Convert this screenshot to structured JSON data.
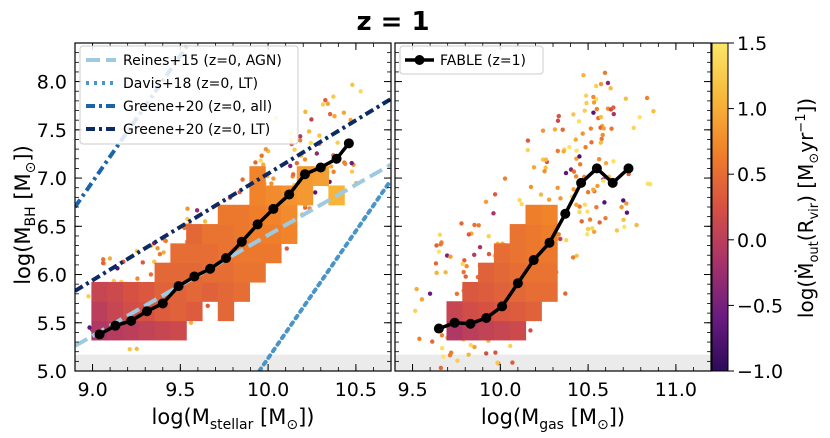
{
  "figure_title": "z = 1",
  "colorbar": {
    "label_parts": [
      "log(",
      "Ṁ",
      "out",
      "(R",
      "vir",
      ") [M",
      "⊙",
      "yr",
      "−1",
      "])"
    ],
    "ticks": [
      1.5,
      1.0,
      0.5,
      0.0,
      -0.5,
      -1.0
    ],
    "tick_labels": [
      "1.5",
      "1.0",
      "0.5",
      "0.0",
      "−0.5",
      "−1.0"
    ],
    "range": [
      -1.0,
      1.5
    ],
    "colormap": "plasma-like (purple → orange → yellow)"
  },
  "colormap_stops": [
    "#2c0a59",
    "#6a1c80",
    "#a8336a",
    "#d75143",
    "#f0802a",
    "#f8b83a",
    "#fbe668"
  ],
  "chart_data": [
    {
      "type": "scatter",
      "panel": "left",
      "xlabel_parts": [
        "log(M",
        "stellar",
        " [M",
        "⊙",
        "])"
      ],
      "ylabel_parts": [
        "log(M",
        "BH",
        " [M",
        "⊙",
        "])"
      ],
      "xlim": [
        8.9,
        10.7
      ],
      "ylim": [
        5.0,
        8.4
      ],
      "x_ticks": [
        9.0,
        9.5,
        10.0,
        10.5
      ],
      "x_tick_labels": [
        "9.0",
        "9.5",
        "10.0",
        "10.5"
      ],
      "y_ticks": [
        5.0,
        5.5,
        6.0,
        6.5,
        7.0,
        7.5,
        8.0
      ],
      "y_tick_labels": [
        "5.0",
        "5.5",
        "6.0",
        "6.5",
        "7.0",
        "7.5",
        "8.0"
      ],
      "shaded_band_below": 5.17,
      "legend_location": "upper-left",
      "relations": [
        {
          "name": "Reines+15 (z=0, AGN)",
          "style": "dashed",
          "color": "#9ecae1",
          "points": [
            [
              8.9,
              5.26
            ],
            [
              10.7,
              7.14
            ]
          ]
        },
        {
          "name": "Davis+18 (z=0, LT)",
          "style": "dotted",
          "color": "#4a95c8",
          "points": [
            [
              9.95,
              5.0
            ],
            [
              10.7,
              6.98
            ]
          ]
        },
        {
          "name": "Greene+20 (z=0, all)",
          "style": "dashdot",
          "color": "#1c64aa",
          "points": [
            [
              8.9,
              6.7
            ],
            [
              9.55,
              8.4
            ]
          ]
        },
        {
          "name": "Greene+20 (z=0, LT)",
          "style": "dashdot",
          "color": "#0e2a63",
          "points": [
            [
              8.9,
              5.83
            ],
            [
              10.7,
              7.82
            ]
          ]
        }
      ],
      "median_line": {
        "name": "FABLE (z=1)",
        "x": [
          9.04,
          9.13,
          9.22,
          9.31,
          9.4,
          9.49,
          9.58,
          9.67,
          9.76,
          9.85,
          9.94,
          10.03,
          10.12,
          10.21,
          10.3,
          10.39,
          10.46
        ],
        "y": [
          5.38,
          5.47,
          5.52,
          5.62,
          5.7,
          5.88,
          5.98,
          6.06,
          6.17,
          6.34,
          6.52,
          6.68,
          6.83,
          7.04,
          7.11,
          7.2,
          7.36
        ]
      },
      "bins": [
        {
          "x": 9.04,
          "y": 5.42,
          "c": -0.1
        },
        {
          "x": 9.04,
          "y": 5.62,
          "c": 0.0
        },
        {
          "x": 9.04,
          "y": 5.82,
          "c": 0.1
        },
        {
          "x": 9.13,
          "y": 5.42,
          "c": -0.05
        },
        {
          "x": 9.13,
          "y": 5.62,
          "c": 0.1
        },
        {
          "x": 9.13,
          "y": 5.82,
          "c": 0.15
        },
        {
          "x": 9.22,
          "y": 5.42,
          "c": 0.0
        },
        {
          "x": 9.22,
          "y": 5.62,
          "c": 0.2
        },
        {
          "x": 9.22,
          "y": 5.82,
          "c": 0.25
        },
        {
          "x": 9.31,
          "y": 5.42,
          "c": 0.05
        },
        {
          "x": 9.31,
          "y": 5.62,
          "c": 0.25
        },
        {
          "x": 9.31,
          "y": 5.82,
          "c": 0.3
        },
        {
          "x": 9.4,
          "y": 5.42,
          "c": 0.1
        },
        {
          "x": 9.4,
          "y": 5.62,
          "c": 0.35
        },
        {
          "x": 9.4,
          "y": 5.82,
          "c": 0.4
        },
        {
          "x": 9.4,
          "y": 6.02,
          "c": 0.45
        },
        {
          "x": 9.49,
          "y": 5.42,
          "c": 0.15
        },
        {
          "x": 9.49,
          "y": 5.62,
          "c": 0.4
        },
        {
          "x": 9.49,
          "y": 5.82,
          "c": 0.4
        },
        {
          "x": 9.49,
          "y": 6.02,
          "c": 0.45
        },
        {
          "x": 9.49,
          "y": 6.22,
          "c": 0.5
        },
        {
          "x": 9.58,
          "y": 5.62,
          "c": 0.35
        },
        {
          "x": 9.58,
          "y": 5.82,
          "c": 0.45
        },
        {
          "x": 9.58,
          "y": 6.02,
          "c": 0.45
        },
        {
          "x": 9.58,
          "y": 6.22,
          "c": 0.5
        },
        {
          "x": 9.58,
          "y": 6.42,
          "c": 0.45
        },
        {
          "x": 9.67,
          "y": 5.82,
          "c": 0.4
        },
        {
          "x": 9.67,
          "y": 6.02,
          "c": 0.5
        },
        {
          "x": 9.67,
          "y": 6.22,
          "c": 0.5
        },
        {
          "x": 9.67,
          "y": 6.42,
          "c": 0.55
        },
        {
          "x": 9.76,
          "y": 5.62,
          "c": 0.45
        },
        {
          "x": 9.76,
          "y": 5.82,
          "c": 0.45
        },
        {
          "x": 9.76,
          "y": 6.02,
          "c": 0.5
        },
        {
          "x": 9.76,
          "y": 6.22,
          "c": 0.55
        },
        {
          "x": 9.76,
          "y": 6.42,
          "c": 0.55
        },
        {
          "x": 9.76,
          "y": 6.62,
          "c": 0.6
        },
        {
          "x": 9.85,
          "y": 5.82,
          "c": 0.5
        },
        {
          "x": 9.85,
          "y": 6.02,
          "c": 0.55
        },
        {
          "x": 9.85,
          "y": 6.22,
          "c": 0.6
        },
        {
          "x": 9.85,
          "y": 6.42,
          "c": 0.6
        },
        {
          "x": 9.85,
          "y": 6.62,
          "c": 0.6
        },
        {
          "x": 9.94,
          "y": 6.02,
          "c": 0.55
        },
        {
          "x": 9.94,
          "y": 6.22,
          "c": 0.6
        },
        {
          "x": 9.94,
          "y": 6.42,
          "c": 0.65
        },
        {
          "x": 9.94,
          "y": 6.62,
          "c": 0.65
        },
        {
          "x": 9.94,
          "y": 6.82,
          "c": 0.7
        },
        {
          "x": 9.94,
          "y": 7.02,
          "c": 0.7
        },
        {
          "x": 10.03,
          "y": 6.22,
          "c": 0.6
        },
        {
          "x": 10.03,
          "y": 6.42,
          "c": 0.65
        },
        {
          "x": 10.03,
          "y": 6.62,
          "c": 0.7
        },
        {
          "x": 10.03,
          "y": 6.82,
          "c": 0.75
        },
        {
          "x": 10.12,
          "y": 6.42,
          "c": 0.7
        },
        {
          "x": 10.12,
          "y": 6.62,
          "c": 0.75
        },
        {
          "x": 10.12,
          "y": 6.82,
          "c": 0.8
        },
        {
          "x": 10.21,
          "y": 6.82,
          "c": 0.85
        },
        {
          "x": 10.21,
          "y": 7.02,
          "c": 0.85
        },
        {
          "x": 10.3,
          "y": 7.02,
          "c": 0.9
        },
        {
          "x": 10.39,
          "y": 6.82,
          "c": 1.05
        }
      ],
      "galaxy_points_summary": "~200 individual galaxies outside the binned region, colour-coded by outflow rate (mostly 0.3–1.5)"
    },
    {
      "type": "scatter",
      "panel": "right",
      "xlabel_parts": [
        "log(M",
        "gas",
        " [M",
        "⊙",
        "])"
      ],
      "xlim": [
        9.4,
        11.2
      ],
      "ylim": [
        5.0,
        8.4
      ],
      "x_ticks": [
        9.5,
        10.0,
        10.5,
        11.0
      ],
      "x_tick_labels": [
        "9.5",
        "10.0",
        "10.5",
        "11.0"
      ],
      "shaded_band_below": 5.17,
      "legend_location": "upper-left",
      "median_line": {
        "name": "FABLE (z=1)",
        "x": [
          9.65,
          9.74,
          9.83,
          9.92,
          10.01,
          10.1,
          10.19,
          10.28,
          10.37,
          10.46,
          10.55,
          10.64,
          10.73
        ],
        "y": [
          5.44,
          5.5,
          5.49,
          5.55,
          5.67,
          5.91,
          6.15,
          6.33,
          6.63,
          6.95,
          7.1,
          6.95,
          7.1
        ]
      },
      "bins": [
        {
          "x": 9.74,
          "y": 5.42,
          "c": -0.1
        },
        {
          "x": 9.74,
          "y": 5.62,
          "c": 0.1
        },
        {
          "x": 9.83,
          "y": 5.42,
          "c": 0.0
        },
        {
          "x": 9.83,
          "y": 5.62,
          "c": 0.2
        },
        {
          "x": 9.83,
          "y": 5.82,
          "c": 0.3
        },
        {
          "x": 9.92,
          "y": 5.42,
          "c": 0.05
        },
        {
          "x": 9.92,
          "y": 5.62,
          "c": 0.25
        },
        {
          "x": 9.92,
          "y": 5.82,
          "c": 0.35
        },
        {
          "x": 9.92,
          "y": 6.02,
          "c": 0.4
        },
        {
          "x": 10.01,
          "y": 5.42,
          "c": 0.1
        },
        {
          "x": 10.01,
          "y": 5.62,
          "c": 0.3
        },
        {
          "x": 10.01,
          "y": 5.82,
          "c": 0.4
        },
        {
          "x": 10.01,
          "y": 6.02,
          "c": 0.45
        },
        {
          "x": 10.01,
          "y": 6.22,
          "c": 0.5
        },
        {
          "x": 10.1,
          "y": 5.42,
          "c": 0.15
        },
        {
          "x": 10.1,
          "y": 5.62,
          "c": 0.35
        },
        {
          "x": 10.1,
          "y": 5.82,
          "c": 0.45
        },
        {
          "x": 10.1,
          "y": 6.02,
          "c": 0.5
        },
        {
          "x": 10.1,
          "y": 6.22,
          "c": 0.55
        },
        {
          "x": 10.1,
          "y": 6.42,
          "c": 0.55
        },
        {
          "x": 10.19,
          "y": 5.62,
          "c": 0.4
        },
        {
          "x": 10.19,
          "y": 5.82,
          "c": 0.5
        },
        {
          "x": 10.19,
          "y": 6.02,
          "c": 0.55
        },
        {
          "x": 10.19,
          "y": 6.22,
          "c": 0.6
        },
        {
          "x": 10.19,
          "y": 6.42,
          "c": 0.6
        },
        {
          "x": 10.19,
          "y": 6.62,
          "c": 0.65
        },
        {
          "x": 10.28,
          "y": 5.82,
          "c": 0.5
        },
        {
          "x": 10.28,
          "y": 6.02,
          "c": 0.55
        },
        {
          "x": 10.28,
          "y": 6.22,
          "c": 0.6
        },
        {
          "x": 10.28,
          "y": 6.42,
          "c": 0.65
        },
        {
          "x": 10.28,
          "y": 6.62,
          "c": 0.7
        }
      ],
      "galaxy_points_summary": "~250 individual galaxies outside the binned region, colour-coded by outflow rate (mostly 0.5–1.5)"
    }
  ]
}
